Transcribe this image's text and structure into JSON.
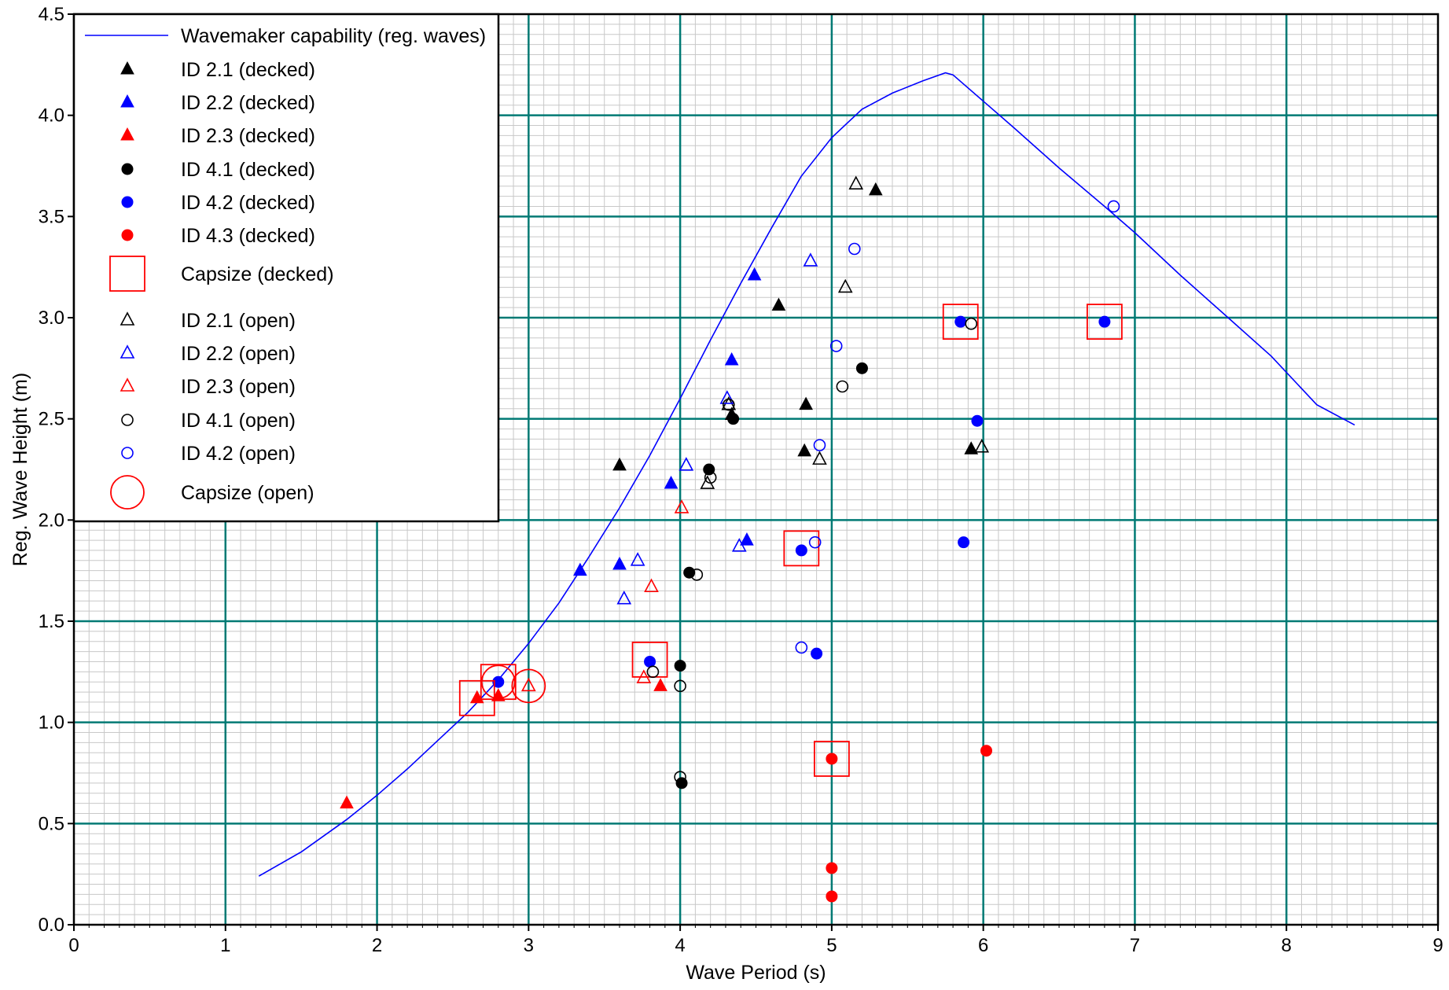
{
  "chart_data": {
    "type": "scatter",
    "title": "",
    "xlabel": "Wave Period (s)",
    "ylabel": "Reg. Wave Height (m)",
    "xlim": [
      0,
      9
    ],
    "ylim": [
      0,
      4.5
    ],
    "x_ticks": [
      "0",
      "1",
      "2",
      "3",
      "4",
      "5",
      "6",
      "7",
      "8",
      "9"
    ],
    "y_ticks": [
      "0.0",
      "0.5",
      "1.0",
      "1.5",
      "2.0",
      "2.5",
      "3.0",
      "3.5",
      "4.0",
      "4.5"
    ],
    "grid": "major and minor",
    "legend_position": "top-left",
    "colors": {
      "black": "#000000",
      "blue": "#0000ff",
      "red": "#ff0000",
      "grid_major": "#007a74",
      "grid_minor": "#c8c8c8"
    },
    "series": [
      {
        "name": "Wavemaker capability (reg. waves)",
        "kind": "line",
        "color": "#0000ff",
        "points": [
          [
            1.22,
            0.24
          ],
          [
            1.5,
            0.36
          ],
          [
            1.8,
            0.52
          ],
          [
            2.0,
            0.64
          ],
          [
            2.2,
            0.77
          ],
          [
            2.4,
            0.91
          ],
          [
            2.6,
            1.05
          ],
          [
            2.8,
            1.21
          ],
          [
            3.0,
            1.39
          ],
          [
            3.2,
            1.59
          ],
          [
            3.4,
            1.82
          ],
          [
            3.6,
            2.06
          ],
          [
            3.8,
            2.32
          ],
          [
            4.0,
            2.6
          ],
          [
            4.2,
            2.89
          ],
          [
            4.4,
            3.17
          ],
          [
            4.6,
            3.44
          ],
          [
            4.8,
            3.7
          ],
          [
            5.0,
            3.89
          ],
          [
            5.2,
            4.03
          ],
          [
            5.4,
            4.11
          ],
          [
            5.6,
            4.17
          ],
          [
            5.75,
            4.21
          ],
          [
            5.8,
            4.2
          ],
          [
            6.0,
            4.07
          ],
          [
            6.2,
            3.94
          ],
          [
            6.5,
            3.74
          ],
          [
            6.8,
            3.55
          ],
          [
            7.0,
            3.42
          ],
          [
            7.3,
            3.21
          ],
          [
            7.6,
            3.01
          ],
          [
            7.9,
            2.81
          ],
          [
            8.2,
            2.57
          ],
          [
            8.45,
            2.47
          ]
        ]
      },
      {
        "name": "ID 2.1 (decked)",
        "marker": "triangle-filled",
        "color": "#000000",
        "points": [
          [
            3.6,
            2.27
          ],
          [
            4.65,
            3.06
          ],
          [
            4.83,
            2.57
          ],
          [
            4.82,
            2.34
          ],
          [
            5.29,
            3.63
          ],
          [
            5.92,
            2.35
          ],
          [
            4.34,
            2.52
          ]
        ]
      },
      {
        "name": "ID 2.2 (decked)",
        "marker": "triangle-filled",
        "color": "#0000ff",
        "points": [
          [
            3.34,
            1.75
          ],
          [
            3.6,
            1.78
          ],
          [
            3.94,
            2.18
          ],
          [
            4.34,
            2.79
          ],
          [
            4.49,
            3.21
          ],
          [
            4.44,
            1.9
          ]
        ]
      },
      {
        "name": "ID 2.3 (decked)",
        "marker": "triangle-filled",
        "color": "#ff0000",
        "points": [
          [
            1.8,
            0.6
          ],
          [
            2.66,
            1.12
          ],
          [
            2.8,
            1.13
          ],
          [
            3.87,
            1.18
          ]
        ]
      },
      {
        "name": "ID 4.1 (decked)",
        "marker": "circle-filled",
        "color": "#000000",
        "points": [
          [
            4.19,
            2.25
          ],
          [
            4.35,
            2.5
          ],
          [
            5.2,
            2.75
          ],
          [
            4.06,
            1.74
          ],
          [
            4.0,
            1.28
          ],
          [
            4.01,
            0.7
          ]
        ]
      },
      {
        "name": "ID 4.2 (decked)",
        "marker": "circle-filled",
        "color": "#0000ff",
        "points": [
          [
            2.8,
            1.2
          ],
          [
            3.8,
            1.3
          ],
          [
            4.8,
            1.85
          ],
          [
            4.9,
            1.34
          ],
          [
            5.85,
            2.98
          ],
          [
            5.96,
            2.49
          ],
          [
            5.87,
            1.89
          ],
          [
            6.8,
            2.98
          ]
        ]
      },
      {
        "name": "ID 4.3 (decked)",
        "marker": "circle-filled",
        "color": "#ff0000",
        "points": [
          [
            5.0,
            0.82
          ],
          [
            6.02,
            0.86
          ],
          [
            5.0,
            0.28
          ],
          [
            5.0,
            0.14
          ]
        ]
      },
      {
        "name": "Capsize (decked)",
        "marker": "square-open-large",
        "color": "#ff0000",
        "points": [
          [
            2.66,
            1.12
          ],
          [
            2.8,
            1.2
          ],
          [
            3.8,
            1.31
          ],
          [
            4.8,
            1.86
          ],
          [
            5.0,
            0.82
          ],
          [
            5.85,
            2.98
          ],
          [
            6.8,
            2.98
          ]
        ]
      },
      {
        "name": "ID 2.1 (open)",
        "marker": "triangle-open",
        "color": "#000000",
        "points": [
          [
            4.32,
            2.57
          ],
          [
            4.18,
            2.18
          ],
          [
            5.09,
            3.15
          ],
          [
            5.16,
            3.66
          ],
          [
            5.99,
            2.36
          ],
          [
            4.92,
            2.3
          ]
        ]
      },
      {
        "name": "ID 2.2 (open)",
        "marker": "triangle-open",
        "color": "#0000ff",
        "points": [
          [
            3.63,
            1.61
          ],
          [
            3.72,
            1.8
          ],
          [
            4.04,
            2.27
          ],
          [
            4.31,
            2.6
          ],
          [
            4.86,
            3.28
          ],
          [
            4.39,
            1.87
          ]
        ]
      },
      {
        "name": "ID 2.3 (open)",
        "marker": "triangle-open",
        "color": "#ff0000",
        "points": [
          [
            3.0,
            1.18
          ],
          [
            3.81,
            1.67
          ],
          [
            4.01,
            2.06
          ],
          [
            3.76,
            1.22
          ]
        ]
      },
      {
        "name": "ID 4.1 (open)",
        "marker": "circle-open",
        "color": "#000000",
        "points": [
          [
            4.2,
            2.21
          ],
          [
            4.32,
            2.57
          ],
          [
            5.07,
            2.66
          ],
          [
            4.11,
            1.73
          ],
          [
            3.82,
            1.25
          ],
          [
            4.0,
            1.18
          ],
          [
            4.0,
            0.73
          ],
          [
            5.92,
            2.97
          ]
        ]
      },
      {
        "name": "ID 4.2 (open)",
        "marker": "circle-open",
        "color": "#0000ff",
        "points": [
          [
            4.89,
            1.89
          ],
          [
            4.92,
            2.37
          ],
          [
            5.03,
            2.86
          ],
          [
            5.15,
            3.34
          ],
          [
            4.8,
            1.37
          ],
          [
            6.86,
            3.55
          ]
        ]
      },
      {
        "name": "Capsize (open)",
        "marker": "circle-open-large",
        "color": "#ff0000",
        "points": [
          [
            2.8,
            1.2
          ],
          [
            3.0,
            1.18
          ]
        ]
      }
    ]
  }
}
